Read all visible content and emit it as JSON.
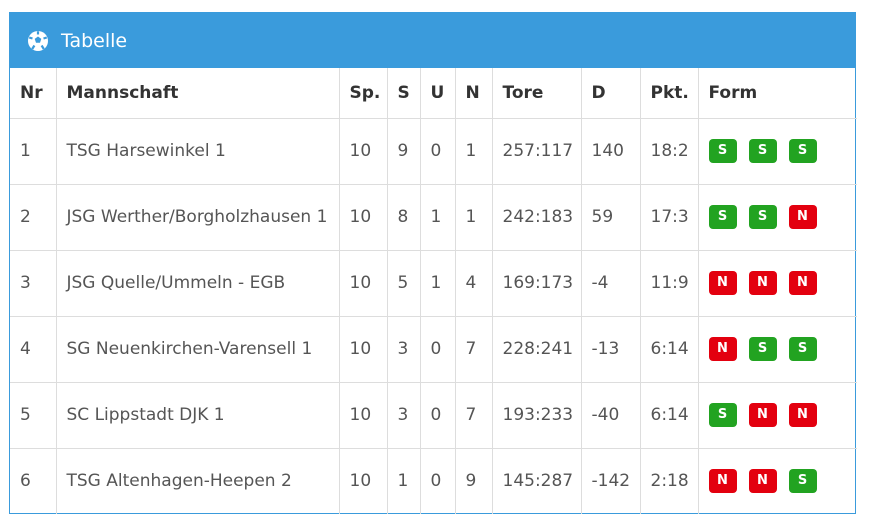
{
  "panel": {
    "title": "Tabelle",
    "icon": "soccer-ball-icon"
  },
  "colors": {
    "header": "#3a9bdc",
    "win": "#22a321",
    "loss": "#e3000f"
  },
  "columns": [
    "Nr",
    "Mannschaft",
    "Sp.",
    "S",
    "U",
    "N",
    "Tore",
    "D",
    "Pkt.",
    "Form"
  ],
  "rows": [
    {
      "nr": "1",
      "team": "TSG Harsewinkel 1",
      "sp": "10",
      "s": "9",
      "u": "0",
      "n": "1",
      "tore": "257:117",
      "d": "140",
      "pkt": "18:2",
      "form": [
        "S",
        "S",
        "S"
      ]
    },
    {
      "nr": "2",
      "team": "JSG Werther/Borgholzhausen 1",
      "sp": "10",
      "s": "8",
      "u": "1",
      "n": "1",
      "tore": "242:183",
      "d": "59",
      "pkt": "17:3",
      "form": [
        "S",
        "S",
        "N"
      ]
    },
    {
      "nr": "3",
      "team": "JSG Quelle/Ummeln - EGB",
      "sp": "10",
      "s": "5",
      "u": "1",
      "n": "4",
      "tore": "169:173",
      "d": "-4",
      "pkt": "11:9",
      "form": [
        "N",
        "N",
        "N"
      ]
    },
    {
      "nr": "4",
      "team": "SG Neuenkirchen-Varensell 1",
      "sp": "10",
      "s": "3",
      "u": "0",
      "n": "7",
      "tore": "228:241",
      "d": "-13",
      "pkt": "6:14",
      "form": [
        "N",
        "S",
        "S"
      ]
    },
    {
      "nr": "5",
      "team": "SC Lippstadt DJK 1",
      "sp": "10",
      "s": "3",
      "u": "0",
      "n": "7",
      "tore": "193:233",
      "d": "-40",
      "pkt": "6:14",
      "form": [
        "S",
        "N",
        "N"
      ]
    },
    {
      "nr": "6",
      "team": "TSG Altenhagen-Heepen 2",
      "sp": "10",
      "s": "1",
      "u": "0",
      "n": "9",
      "tore": "145:287",
      "d": "-142",
      "pkt": "2:18",
      "form": [
        "N",
        "N",
        "S"
      ]
    }
  ]
}
